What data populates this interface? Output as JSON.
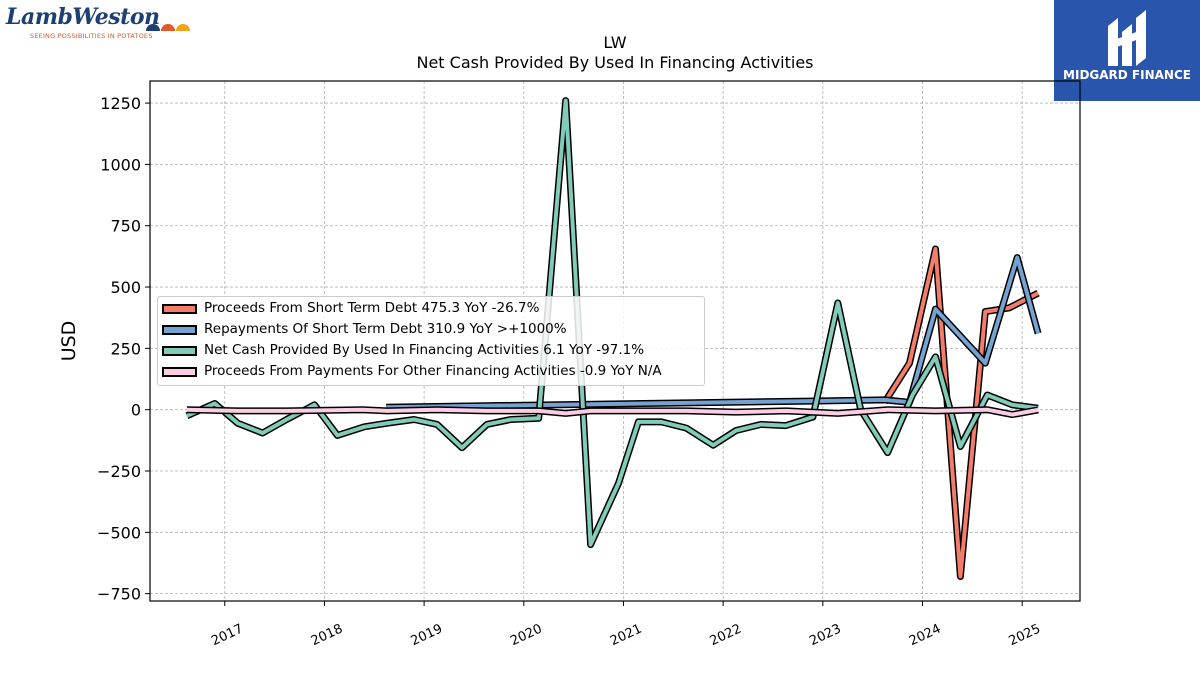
{
  "logos": {
    "lambweston": {
      "name": "LambWeston",
      "tagline": "SEEING POSSIBILITIES IN POTATOES",
      "dot_colors": [
        "#1d3f73",
        "#e25a2b",
        "#f2a516"
      ]
    },
    "midgard": {
      "name": "MIDGARD FINANCE",
      "bg_color": "#2a55ad"
    }
  },
  "chart_data": {
    "type": "line",
    "title": "LW",
    "subtitle": "Net Cash Provided By Used In Financing Activities",
    "ylabel": "USD",
    "xlabel": "",
    "ylim": [
      -780,
      1340
    ],
    "xlim": [
      2016.25,
      2025.58
    ],
    "y_ticks": [
      -750,
      -500,
      -250,
      0,
      250,
      500,
      750,
      1000,
      1250
    ],
    "y_tick_labels": [
      "−750",
      "−500",
      "−250",
      "0",
      "250",
      "500",
      "750",
      "1000",
      "1250"
    ],
    "x_ticks": [
      2017,
      2018,
      2019,
      2020,
      2021,
      2022,
      2023,
      2024,
      2025
    ],
    "x_tick_labels": [
      "2017",
      "2018",
      "2019",
      "2020",
      "2021",
      "2022",
      "2023",
      "2024",
      "2025"
    ],
    "grid": true,
    "legend_position": "center-left",
    "series": [
      {
        "name": "Proceeds From Short Term Debt",
        "legend_label": "Proceeds From Short Term Debt  475.3 YoY -26.7%",
        "color": "#f47c6a",
        "x": [
          2023.62,
          2023.87,
          2024.13,
          2024.38,
          2024.63,
          2024.87,
          2025.16
        ],
        "y": [
          30,
          190,
          655,
          -680,
          400,
          415,
          475.3
        ]
      },
      {
        "name": "Repayments Of Short Term Debt",
        "legend_label": "Repayments Of Short Term Debt  310.9 YoY >+1000%",
        "color": "#75a3d1",
        "x": [
          2018.62,
          2022.87,
          2023.62,
          2023.87,
          2024.13,
          2024.63,
          2024.95,
          2025.16
        ],
        "y": [
          10,
          35,
          40,
          30,
          410,
          190,
          620,
          310.9
        ]
      },
      {
        "name": "Net Cash Provided By Used In Financing Activities",
        "legend_label": "Net Cash Provided By Used In Financing Activities  6.1 YoY -97.1%",
        "color": "#81cbb9",
        "x": [
          2016.62,
          2016.9,
          2017.13,
          2017.38,
          2017.62,
          2017.9,
          2018.13,
          2018.4,
          2018.63,
          2018.9,
          2019.13,
          2019.38,
          2019.63,
          2019.87,
          2020.15,
          2020.42,
          2020.67,
          2020.95,
          2021.15,
          2021.38,
          2021.63,
          2021.9,
          2022.13,
          2022.38,
          2022.63,
          2022.9,
          2023.15,
          2023.38,
          2023.65,
          2023.9,
          2024.13,
          2024.38,
          2024.65,
          2024.9,
          2025.16
        ],
        "y": [
          -25,
          25,
          -55,
          -95,
          -40,
          20,
          -105,
          -70,
          -55,
          -40,
          -60,
          -155,
          -60,
          -40,
          -35,
          1260,
          -550,
          -300,
          -50,
          -50,
          -75,
          -145,
          -85,
          -60,
          -65,
          -30,
          435,
          0,
          -175,
          60,
          215,
          -150,
          60,
          20,
          6.1
        ]
      },
      {
        "name": "Proceeds From Payments For Other Financing Activities",
        "legend_label": "Proceeds From Payments For Other Financing Activities  -0.9 YoY N/A",
        "color": "#fccde5",
        "x": [
          2016.62,
          2017.13,
          2017.62,
          2018.38,
          2018.63,
          2019.13,
          2019.63,
          2020.15,
          2020.42,
          2020.67,
          2021.15,
          2021.63,
          2022.13,
          2022.63,
          2023.15,
          2023.65,
          2024.13,
          2024.65,
          2024.9,
          2025.16
        ],
        "y": [
          0,
          -5,
          -5,
          0,
          -5,
          0,
          -5,
          -5,
          -15,
          -5,
          -5,
          -5,
          -10,
          -5,
          -15,
          0,
          -5,
          0,
          -20,
          -0.9
        ]
      }
    ]
  }
}
